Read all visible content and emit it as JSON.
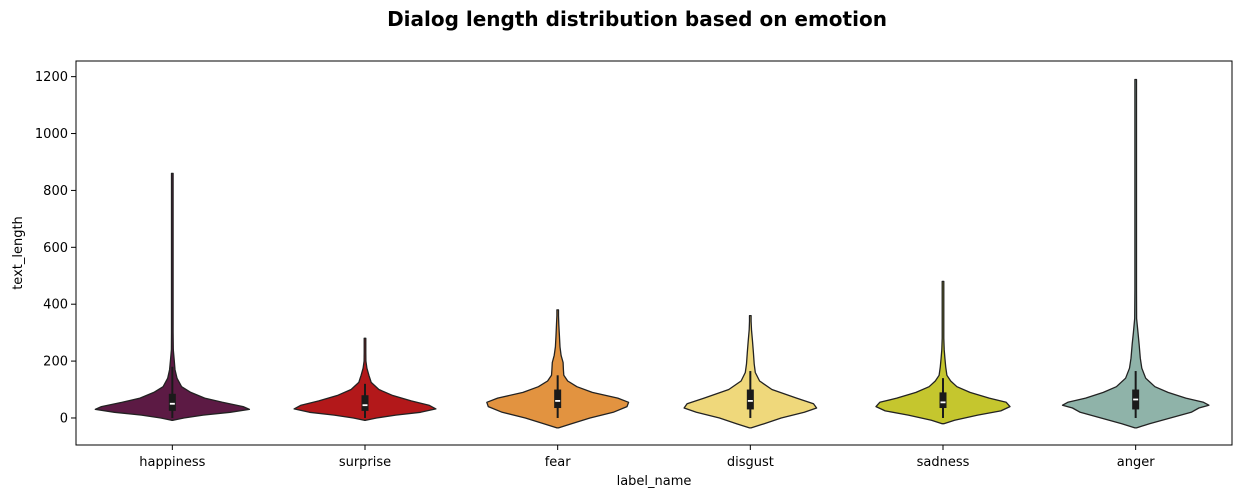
{
  "chart_data": {
    "type": "violin",
    "title": "Dialog length distribution based on emotion",
    "xlabel": "label_name",
    "ylabel": "text_length",
    "ylim": [
      -95,
      1255
    ],
    "yticks": [
      0,
      200,
      400,
      600,
      800,
      1000,
      1200
    ],
    "ytick_labels": [
      "0",
      "200",
      "400",
      "600",
      "800",
      "1000",
      "1200"
    ],
    "grid": false,
    "legend": "none",
    "categories": [
      "happiness",
      "surprise",
      "fear",
      "disgust",
      "sadness",
      "anger"
    ],
    "series": [
      {
        "category": "happiness",
        "color": "#5c1a44",
        "min": 0,
        "max": 860,
        "q1": 25,
        "median": 50,
        "q3": 85,
        "whisker_low": 0,
        "whisker_high": 180,
        "density": [
          [
            -8,
            0.0
          ],
          [
            0,
            0.15
          ],
          [
            10,
            0.4
          ],
          [
            20,
            0.75
          ],
          [
            30,
            1.0
          ],
          [
            40,
            0.92
          ],
          [
            55,
            0.65
          ],
          [
            70,
            0.42
          ],
          [
            90,
            0.24
          ],
          [
            110,
            0.12
          ],
          [
            140,
            0.06
          ],
          [
            170,
            0.035
          ],
          [
            200,
            0.025
          ],
          [
            240,
            0.012
          ],
          [
            300,
            0.006
          ],
          [
            400,
            0.004
          ],
          [
            600,
            0.003
          ],
          [
            860,
            0.002
          ]
        ]
      },
      {
        "category": "surprise",
        "color": "#b3181a",
        "min": 0,
        "max": 280,
        "q1": 25,
        "median": 45,
        "q3": 80,
        "whisker_low": 0,
        "whisker_high": 120,
        "density": [
          [
            -8,
            0.0
          ],
          [
            0,
            0.15
          ],
          [
            10,
            0.4
          ],
          [
            20,
            0.72
          ],
          [
            32,
            0.92
          ],
          [
            45,
            0.83
          ],
          [
            60,
            0.6
          ],
          [
            80,
            0.35
          ],
          [
            100,
            0.18
          ],
          [
            125,
            0.08
          ],
          [
            150,
            0.05
          ],
          [
            175,
            0.025
          ],
          [
            200,
            0.012
          ],
          [
            230,
            0.006
          ],
          [
            260,
            0.003
          ],
          [
            280,
            0.002
          ]
        ]
      },
      {
        "category": "fear",
        "color": "#e29340",
        "min": 0,
        "max": 380,
        "q1": 35,
        "median": 60,
        "q3": 100,
        "whisker_low": 0,
        "whisker_high": 150,
        "density": [
          [
            -35,
            0.0
          ],
          [
            -20,
            0.18
          ],
          [
            0,
            0.42
          ],
          [
            20,
            0.72
          ],
          [
            40,
            0.9
          ],
          [
            55,
            0.92
          ],
          [
            70,
            0.78
          ],
          [
            90,
            0.45
          ],
          [
            110,
            0.25
          ],
          [
            130,
            0.13
          ],
          [
            150,
            0.08
          ],
          [
            170,
            0.075
          ],
          [
            195,
            0.07
          ],
          [
            220,
            0.045
          ],
          [
            250,
            0.03
          ],
          [
            290,
            0.022
          ],
          [
            330,
            0.015
          ],
          [
            360,
            0.01
          ],
          [
            380,
            0.004
          ]
        ]
      },
      {
        "category": "disgust",
        "color": "#efd87b",
        "min": 0,
        "max": 360,
        "q1": 30,
        "median": 60,
        "q3": 100,
        "whisker_low": 0,
        "whisker_high": 165,
        "density": [
          [
            -35,
            0.0
          ],
          [
            -20,
            0.18
          ],
          [
            0,
            0.4
          ],
          [
            20,
            0.7
          ],
          [
            35,
            0.86
          ],
          [
            50,
            0.82
          ],
          [
            70,
            0.6
          ],
          [
            100,
            0.28
          ],
          [
            130,
            0.12
          ],
          [
            160,
            0.065
          ],
          [
            190,
            0.05
          ],
          [
            230,
            0.04
          ],
          [
            270,
            0.028
          ],
          [
            310,
            0.015
          ],
          [
            340,
            0.008
          ],
          [
            360,
            0.004
          ]
        ]
      },
      {
        "category": "sadness",
        "color": "#c5c62e",
        "min": 0,
        "max": 480,
        "q1": 35,
        "median": 55,
        "q3": 90,
        "whisker_low": 0,
        "whisker_high": 140,
        "density": [
          [
            -20,
            0.0
          ],
          [
            -8,
            0.15
          ],
          [
            10,
            0.45
          ],
          [
            25,
            0.75
          ],
          [
            40,
            0.87
          ],
          [
            55,
            0.82
          ],
          [
            70,
            0.6
          ],
          [
            90,
            0.35
          ],
          [
            110,
            0.18
          ],
          [
            130,
            0.1
          ],
          [
            150,
            0.05
          ],
          [
            180,
            0.035
          ],
          [
            210,
            0.025
          ],
          [
            240,
            0.015
          ],
          [
            280,
            0.01
          ],
          [
            330,
            0.008
          ],
          [
            400,
            0.005
          ],
          [
            480,
            0.003
          ]
        ]
      },
      {
        "category": "anger",
        "color": "#8fb3a9",
        "min": 0,
        "max": 1190,
        "q1": 30,
        "median": 65,
        "q3": 100,
        "whisker_low": 0,
        "whisker_high": 165,
        "density": [
          [
            -35,
            0.0
          ],
          [
            -20,
            0.18
          ],
          [
            0,
            0.45
          ],
          [
            20,
            0.72
          ],
          [
            35,
            0.82
          ],
          [
            45,
            0.95
          ],
          [
            55,
            0.88
          ],
          [
            70,
            0.65
          ],
          [
            90,
            0.42
          ],
          [
            110,
            0.25
          ],
          [
            140,
            0.13
          ],
          [
            175,
            0.08
          ],
          [
            210,
            0.06
          ],
          [
            260,
            0.045
          ],
          [
            300,
            0.03
          ],
          [
            350,
            0.012
          ],
          [
            450,
            0.005
          ],
          [
            700,
            0.003
          ],
          [
            1000,
            0.003
          ],
          [
            1190,
            0.002
          ]
        ]
      }
    ]
  }
}
